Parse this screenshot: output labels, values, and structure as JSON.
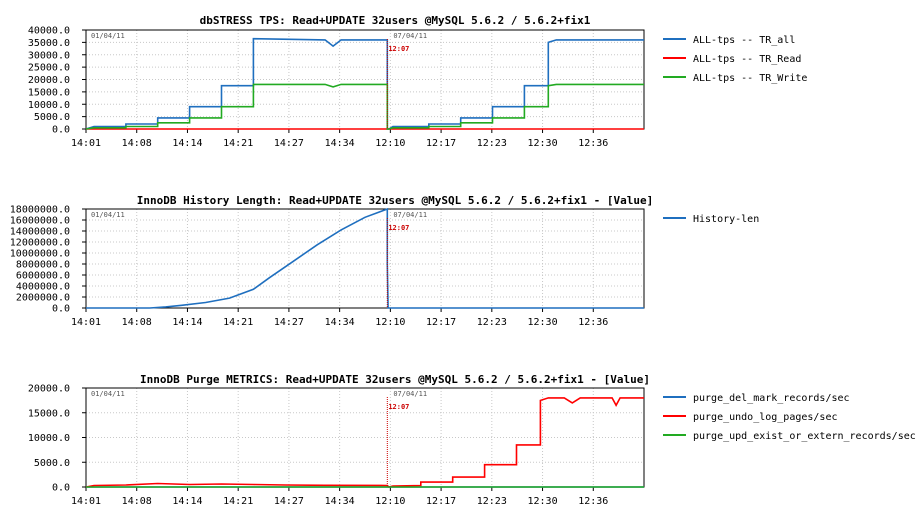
{
  "chart_data": [
    {
      "type": "line",
      "title": "dbSTRESS TPS: Read+UPDATE 32users @MySQL 5.6.2 / 5.6.2+fix1",
      "ylim": [
        0,
        40000
      ],
      "yticks": [
        "0.0",
        "5000.0",
        "10000.0",
        "15000.0",
        "20000.0",
        "25000.0",
        "30000.0",
        "35000.0",
        "40000.0"
      ],
      "xticks": [
        "14:01",
        "14:08",
        "14:14",
        "14:21",
        "14:27",
        "14:34",
        "12:10",
        "12:17",
        "12:23",
        "12:30",
        "12:36"
      ],
      "date_left": "01/04/11",
      "date_right": "07/04/11",
      "marker_time": "12:07",
      "legend": [
        "ALL-tps -- TR_all",
        "ALL-tps -- TR_Read",
        "ALL-tps -- TR_Write"
      ],
      "series": [
        {
          "name": "ALL-tps -- TR_all",
          "color": "#1f6fbf",
          "points": [
            [
              0,
              0
            ],
            [
              1,
              1000
            ],
            [
              5,
              1000
            ],
            [
              5,
              2000
            ],
            [
              9,
              2000
            ],
            [
              9,
              4500
            ],
            [
              13,
              4500
            ],
            [
              13,
              9000
            ],
            [
              17,
              9000
            ],
            [
              17,
              17500
            ],
            [
              21,
              17500
            ],
            [
              21,
              36500
            ],
            [
              30,
              36000
            ],
            [
              31,
              33500
            ],
            [
              32,
              36000
            ],
            [
              37.8,
              36000
            ],
            [
              37.8,
              0
            ],
            [
              38,
              0
            ],
            [
              38.5,
              1000
            ],
            [
              43,
              1000
            ],
            [
              43,
              2000
            ],
            [
              47,
              2000
            ],
            [
              47,
              4500
            ],
            [
              51,
              4500
            ],
            [
              51,
              9000
            ],
            [
              55,
              9000
            ],
            [
              55,
              17500
            ],
            [
              58,
              17500
            ],
            [
              58,
              35000
            ],
            [
              59,
              36000
            ],
            [
              70,
              36000
            ]
          ]
        },
        {
          "name": "ALL-tps -- TR_Read",
          "color": "#ff0000",
          "points": [
            [
              0,
              0
            ],
            [
              70,
              0
            ]
          ]
        },
        {
          "name": "ALL-tps -- TR_Write",
          "color": "#22aa22",
          "points": [
            [
              0,
              0
            ],
            [
              1,
              500
            ],
            [
              5,
              500
            ],
            [
              5,
              1000
            ],
            [
              9,
              1000
            ],
            [
              9,
              2500
            ],
            [
              13,
              2500
            ],
            [
              13,
              4500
            ],
            [
              17,
              4500
            ],
            [
              17,
              9000
            ],
            [
              21,
              9000
            ],
            [
              21,
              18000
            ],
            [
              30,
              18000
            ],
            [
              31,
              17000
            ],
            [
              32,
              18000
            ],
            [
              37.8,
              18000
            ],
            [
              37.8,
              0
            ],
            [
              38,
              0
            ],
            [
              38.5,
              500
            ],
            [
              43,
              500
            ],
            [
              43,
              1000
            ],
            [
              47,
              1000
            ],
            [
              47,
              2500
            ],
            [
              51,
              2500
            ],
            [
              51,
              4500
            ],
            [
              55,
              4500
            ],
            [
              55,
              9000
            ],
            [
              58,
              9000
            ],
            [
              58,
              17500
            ],
            [
              59,
              18000
            ],
            [
              70,
              18000
            ]
          ]
        }
      ]
    },
    {
      "type": "line",
      "title": "InnoDB History Length: Read+UPDATE 32users @MySQL 5.6.2 / 5.6.2+fix1 - [Value]",
      "ylim": [
        0,
        18000000
      ],
      "yticks": [
        "0.0",
        "2000000.0",
        "4000000.0",
        "6000000.0",
        "8000000.0",
        "10000000.0",
        "12000000.0",
        "14000000.0",
        "16000000.0",
        "18000000.0"
      ],
      "xticks": [
        "14:01",
        "14:08",
        "14:14",
        "14:21",
        "14:27",
        "14:34",
        "12:10",
        "12:17",
        "12:23",
        "12:30",
        "12:36"
      ],
      "date_left": "01/04/11",
      "date_right": "07/04/11",
      "marker_time": "12:07",
      "legend": [
        "History-len"
      ],
      "series": [
        {
          "name": "History-len",
          "color": "#1f6fbf",
          "points": [
            [
              0,
              0
            ],
            [
              8,
              0
            ],
            [
              10,
              200000
            ],
            [
              12,
              500000
            ],
            [
              15,
              1000000
            ],
            [
              18,
              1800000
            ],
            [
              21,
              3400000
            ],
            [
              23,
              5500000
            ],
            [
              26,
              8500000
            ],
            [
              29,
              11500000
            ],
            [
              32,
              14200000
            ],
            [
              35,
              16500000
            ],
            [
              37.8,
              18000000
            ],
            [
              37.8,
              8000000
            ],
            [
              37.9,
              0
            ],
            [
              70,
              0
            ]
          ]
        }
      ]
    },
    {
      "type": "line",
      "title": "InnoDB Purge METRICS: Read+UPDATE 32users @MySQL 5.6.2 / 5.6.2+fix1 - [Value]",
      "ylim": [
        0,
        20000
      ],
      "yticks": [
        "0.0",
        "5000.0",
        "10000.0",
        "15000.0",
        "20000.0"
      ],
      "xticks": [
        "14:01",
        "14:08",
        "14:14",
        "14:21",
        "14:27",
        "14:34",
        "12:10",
        "12:17",
        "12:23",
        "12:30",
        "12:36"
      ],
      "date_left": "01/04/11",
      "date_right": "07/04/11",
      "marker_time": "12:07",
      "legend": [
        "purge_del_mark_records/sec",
        "purge_undo_log_pages/sec",
        "purge_upd_exist_or_extern_records/sec"
      ],
      "series": [
        {
          "name": "purge_del_mark_records/sec",
          "color": "#1f6fbf",
          "points": [
            [
              0,
              0
            ],
            [
              70,
              0
            ]
          ]
        },
        {
          "name": "purge_undo_log_pages/sec",
          "color": "#ff0000",
          "points": [
            [
              0,
              0
            ],
            [
              1,
              300
            ],
            [
              5,
              400
            ],
            [
              9,
              700
            ],
            [
              13,
              500
            ],
            [
              17,
              600
            ],
            [
              21,
              500
            ],
            [
              25,
              400
            ],
            [
              30,
              350
            ],
            [
              37.8,
              300
            ],
            [
              38,
              0
            ],
            [
              38.5,
              200
            ],
            [
              42,
              300
            ],
            [
              42,
              1000
            ],
            [
              46,
              1000
            ],
            [
              46,
              2000
            ],
            [
              50,
              2000
            ],
            [
              50,
              4500
            ],
            [
              54,
              4500
            ],
            [
              54,
              8500
            ],
            [
              57,
              8500
            ],
            [
              57,
              17500
            ],
            [
              58,
              18000
            ],
            [
              60,
              18000
            ],
            [
              61,
              17000
            ],
            [
              62,
              18000
            ],
            [
              66,
              18000
            ],
            [
              66.5,
              16500
            ],
            [
              67,
              18000
            ],
            [
              70,
              18000
            ]
          ]
        },
        {
          "name": "purge_upd_exist_or_extern_records/sec",
          "color": "#22aa22",
          "points": [
            [
              0,
              0
            ],
            [
              70,
              0
            ]
          ]
        }
      ]
    }
  ]
}
